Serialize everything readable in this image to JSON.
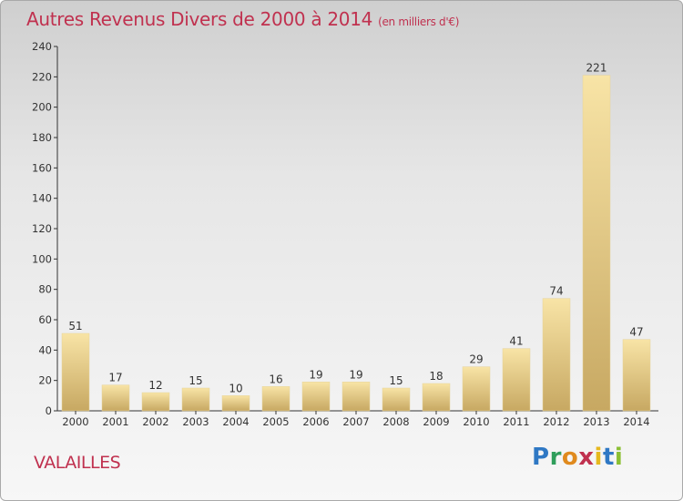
{
  "title": "Autres Revenus Divers de 2000 à 2014",
  "subtitle": "(en milliers d'€)",
  "commune": "VALAILLES",
  "logo": {
    "p": "P",
    "r": "r",
    "o": "o",
    "x": "x",
    "i1": "i",
    "t": "t",
    "i2": "i"
  },
  "colors": {
    "title": "#c0314f",
    "bar_light": "#f6df9c",
    "bar_dark": "#c9aa62"
  },
  "chart_data": {
    "type": "bar",
    "title": "Autres Revenus Divers de 2000 à 2014",
    "subtitle": "(en milliers d'€)",
    "categories": [
      "2000",
      "2001",
      "2002",
      "2003",
      "2004",
      "2005",
      "2006",
      "2007",
      "2008",
      "2009",
      "2010",
      "2011",
      "2012",
      "2013",
      "2014"
    ],
    "values": [
      51,
      17,
      12,
      15,
      10,
      16,
      19,
      19,
      15,
      18,
      29,
      41,
      74,
      221,
      47
    ],
    "ylim": [
      0,
      240
    ],
    "yticks": [
      0,
      20,
      40,
      60,
      80,
      100,
      120,
      140,
      160,
      180,
      200,
      220,
      240
    ],
    "grid": false,
    "legend": "none"
  }
}
